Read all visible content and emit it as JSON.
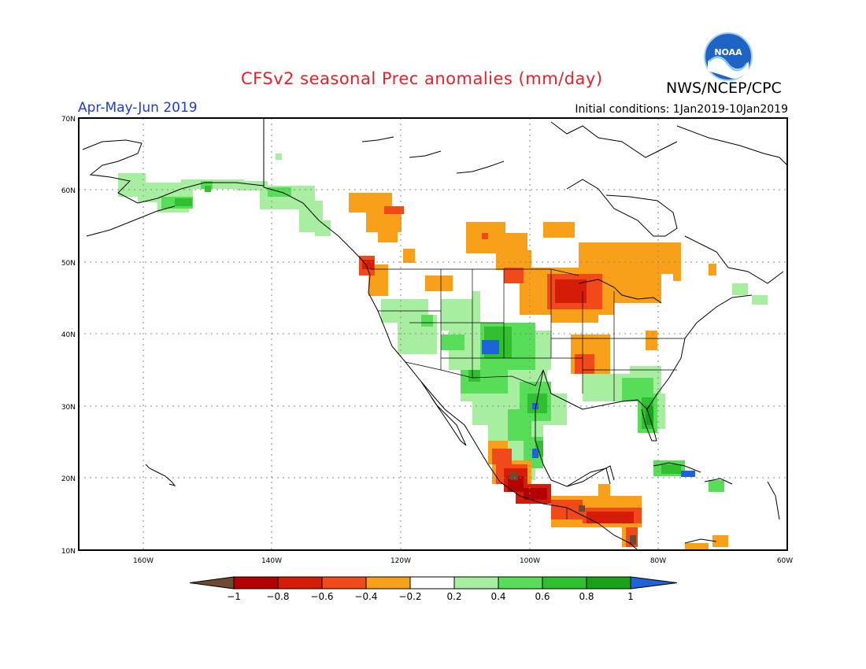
{
  "header": {
    "title": "CFSv2 seasonal Prec anomalies (mm/day)",
    "season": "Apr-May-Jun 2019",
    "initial_conditions": "Initial conditions: 1Jan2019-10Jan2019",
    "org": "NWS/NCEP/CPC",
    "logo_text": "NOAA"
  },
  "map": {
    "lat_labels": [
      "70N",
      "60N",
      "50N",
      "40N",
      "30N",
      "20N",
      "10N"
    ],
    "lon_labels": [
      "160W",
      "140W",
      "120W",
      "100W",
      "80W",
      "60W"
    ]
  },
  "colorbar": {
    "labels": [
      "-1",
      "-0.8",
      "-0.6",
      "-0.4",
      "-0.2",
      "0.2",
      "0.4",
      "0.6",
      "0.8",
      "1"
    ],
    "colors": [
      "#6e4a33",
      "#b30000",
      "#d41c08",
      "#f04a1a",
      "#f9a01a",
      "#ffffff",
      "#a8eea0",
      "#58dd58",
      "#2fbf2f",
      "#1aa11a",
      "#1f64d6"
    ]
  }
}
